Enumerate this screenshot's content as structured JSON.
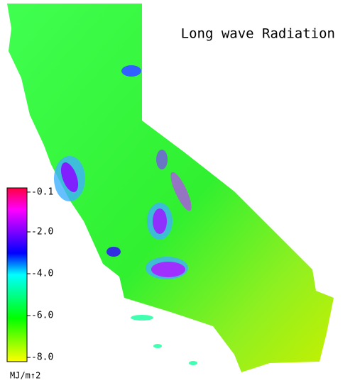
{
  "title": "Long wave Radiation",
  "colorbar": {
    "range": [
      0.1,
      -8.2
    ],
    "ticks": [
      {
        "value": -0.1,
        "label": "-0.1"
      },
      {
        "value": -2.0,
        "label": "-2.0"
      },
      {
        "value": -4.0,
        "label": "-4.0"
      },
      {
        "value": -6.0,
        "label": "-6.0"
      },
      {
        "value": -8.0,
        "label": "-8.0"
      }
    ],
    "colors": [
      "#ff0040",
      "#ff00ff",
      "#8000ff",
      "#0000ff",
      "#00ffff",
      "#00ff80",
      "#00ff00",
      "#80ff00",
      "#ffff00"
    ],
    "unit": "MJ/m↑2"
  }
}
